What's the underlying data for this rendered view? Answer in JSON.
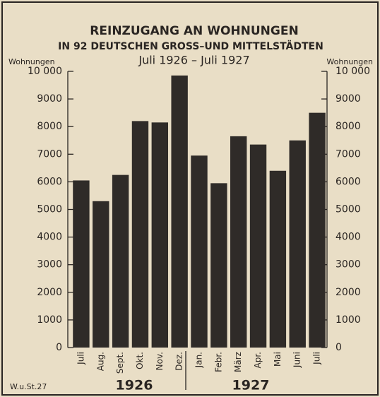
{
  "chart_data": {
    "type": "bar",
    "title": "REINZUGANG AN WOHNUNGEN",
    "subtitle": "IN 92 DEUTSCHEN GROSS–UND MITTELSTÄDTEN",
    "period": "Juli 1926 – Juli 1927",
    "ylabel": "Wohnungen",
    "y2label": "Wohnungen",
    "categories": [
      "Juli",
      "Aug.",
      "Sept.",
      "Okt.",
      "Nov.",
      "Dez.",
      "Jan.",
      "Febr.",
      "März",
      "Apr.",
      "Mai",
      "Juni",
      "Juli"
    ],
    "values": [
      6050,
      5300,
      6250,
      8200,
      8150,
      9850,
      6950,
      5950,
      7650,
      7350,
      6400,
      7500,
      8500
    ],
    "color": "#2f2b28",
    "ylim": [
      0,
      10000
    ],
    "yticks": [
      0,
      1000,
      2000,
      3000,
      4000,
      5000,
      6000,
      7000,
      8000,
      9000,
      {
        "value": 10000,
        "label": "10 000"
      }
    ],
    "y2lim": [
      0,
      10000
    ],
    "y2ticks": [
      0,
      1000,
      2000,
      3000,
      4000,
      5000,
      6000,
      7000,
      8000,
      9000,
      {
        "value": 10000,
        "label": "10 000"
      }
    ],
    "years": [
      "1926",
      "1927"
    ],
    "source": "W.u.St.27",
    "grid": false
  }
}
